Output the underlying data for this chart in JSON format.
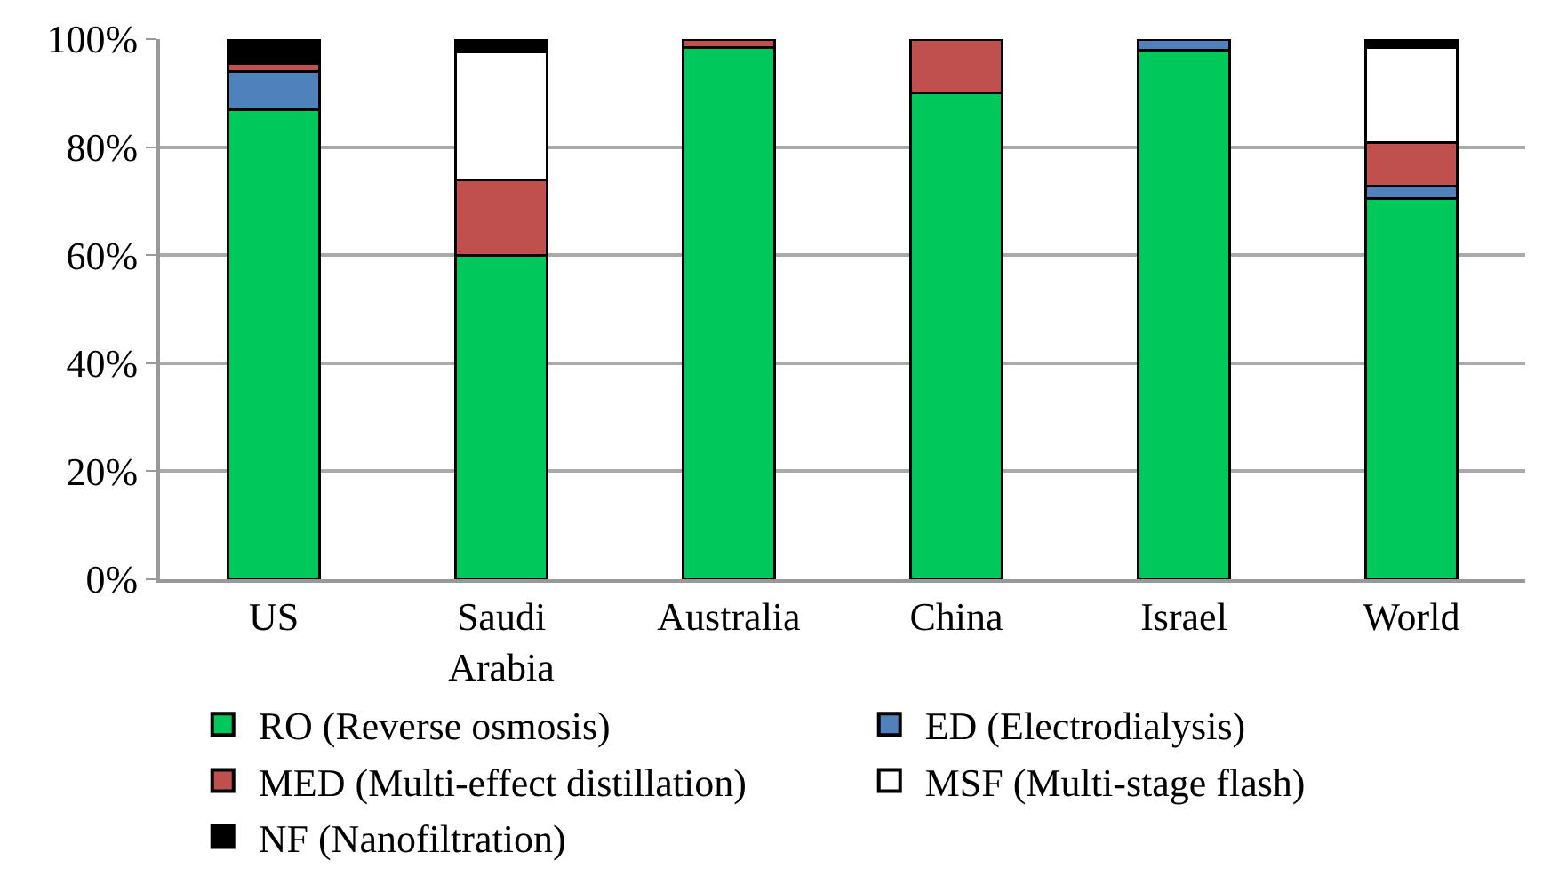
{
  "chart_data": {
    "type": "bar",
    "stacked": true,
    "categories": [
      "US",
      "Saudi Arabia",
      "Australia",
      "China",
      "Israel",
      "World"
    ],
    "series": [
      {
        "name": "RO (Reverse osmosis)",
        "color": "#00c85a",
        "values": [
          87,
          60,
          98.5,
          90,
          98,
          70.5
        ]
      },
      {
        "name": "ED (Electrodialysis)",
        "color": "#4f81bd",
        "values": [
          7,
          0,
          0,
          0,
          2,
          2.3
        ]
      },
      {
        "name": "MED (Multi-effect distillation)",
        "color": "#c0504d",
        "values": [
          1.5,
          14,
          1.5,
          10,
          0,
          8
        ]
      },
      {
        "name": "MSF (Multi-stage flash)",
        "color": "#ffffff",
        "values": [
          0,
          23.6,
          0,
          0,
          0,
          17.6
        ]
      },
      {
        "name": "NF (Nanofiltration)",
        "color": "#000000",
        "values": [
          4.5,
          2.4,
          0,
          0,
          0,
          1.6
        ]
      }
    ],
    "ylim": [
      0,
      100
    ],
    "yticks": [
      {
        "value": 0,
        "label": "0%"
      },
      {
        "value": 20,
        "label": "20%"
      },
      {
        "value": 40,
        "label": "40%"
      },
      {
        "value": 60,
        "label": "60%"
      },
      {
        "value": 80,
        "label": "80%"
      },
      {
        "value": 100,
        "label": "100%"
      }
    ],
    "grid": "y",
    "legend": "bottom"
  }
}
